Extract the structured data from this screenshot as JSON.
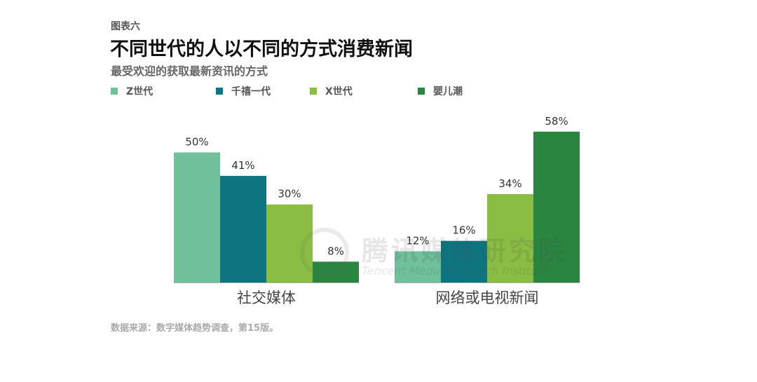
{
  "figure_label": "图表六",
  "title": "不同世代的人以不同的方式消费新闻",
  "subtitle": "最受欢迎的获取最新资讯的方式",
  "source": "数据来源：数字媒体趋势调查，第15版。",
  "watermark": {
    "text": "腾讯媒体研究院",
    "subtext": "Tencent Media Research Institute"
  },
  "chart_data": {
    "type": "bar",
    "categories": [
      "社交媒体",
      "网络或电视新闻"
    ],
    "series": [
      {
        "name": "Z世代",
        "color": "#6fc09b",
        "values": [
          50,
          12
        ],
        "labels": [
          "50%",
          "12%"
        ]
      },
      {
        "name": "千禧一代",
        "color": "#0e7580",
        "values": [
          41,
          16
        ],
        "labels": [
          "41%",
          "16%"
        ]
      },
      {
        "name": "X世代",
        "color": "#8abd43",
        "values": [
          30,
          34
        ],
        "labels": [
          "30%",
          "34%"
        ]
      },
      {
        "name": "婴儿潮",
        "color": "#2a8541",
        "values": [
          8,
          58
        ],
        "labels": [
          "8%",
          "58%"
        ]
      }
    ],
    "ylim": [
      0,
      58
    ],
    "grid": false,
    "legend_position": "top-left"
  }
}
